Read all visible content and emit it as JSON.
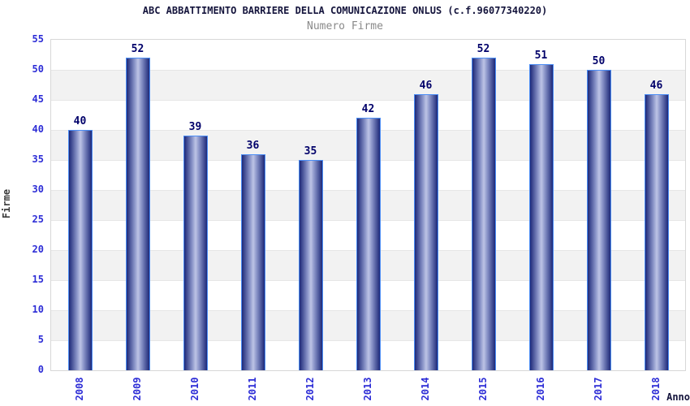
{
  "header": {
    "title": "ABC ABBATTIMENTO BARRIERE DELLA COMUNICAZIONE ONLUS (c.f.96077340220)",
    "subtitle": "Numero Firme"
  },
  "axes": {
    "y_label": "Firme",
    "x_label": "Anno"
  },
  "chart_data": {
    "type": "bar",
    "title": "ABC ABBATTIMENTO BARRIERE DELLA COMUNICAZIONE ONLUS (c.f.96077340220)",
    "subtitle": "Numero Firme",
    "xlabel": "Anno",
    "ylabel": "Firme",
    "categories": [
      "2008",
      "2009",
      "2010",
      "2011",
      "2012",
      "2013",
      "2014",
      "2015",
      "2016",
      "2017",
      "2018"
    ],
    "values": [
      40,
      52,
      39,
      36,
      35,
      42,
      46,
      52,
      51,
      50,
      46
    ],
    "ylim": [
      0,
      55
    ],
    "ytick_step": 5,
    "grid": "horizontal-bands-alternating",
    "legend": "none",
    "colors": {
      "bar_dark": "#1d2979",
      "bar_mid": "#8a94c8",
      "bar_light": "#bdc4e6",
      "bar_outline": "#4b8df5",
      "tick_label": "#2d2dd6",
      "value_label": "#00006a",
      "band_shaded": "#f2f2f2",
      "band_plain": "#ffffff",
      "plot_border": "#d8d8d8",
      "title_color": "#14143c",
      "subtitle_color": "#8a8a8a"
    }
  }
}
